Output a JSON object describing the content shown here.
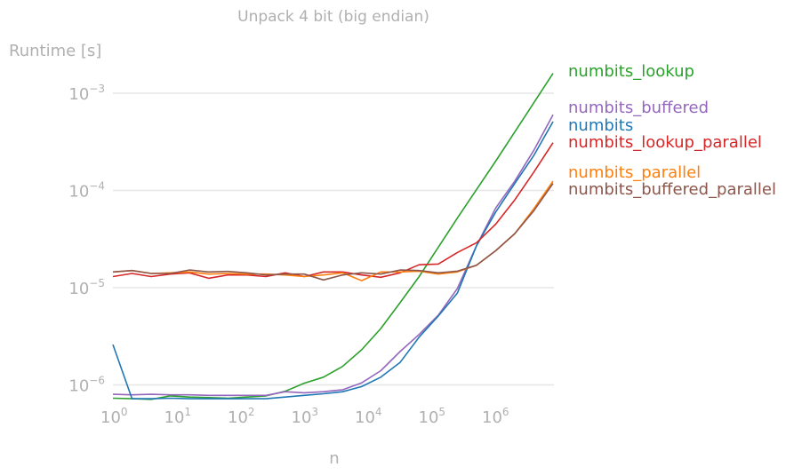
{
  "chart_data": {
    "type": "line",
    "title": "Unpack 4 bit (big endian)",
    "xlabel": "n",
    "ylabel": "Runtime [s]",
    "xscale": "log",
    "yscale": "log",
    "xlim": [
      1,
      8388608
    ],
    "ylim": [
      7e-07,
      0.0016
    ],
    "grid": "horizontal",
    "legend": "labels at line ends (right)",
    "x_ticks": [
      {
        "value": 1,
        "base": "10",
        "exp": "0"
      },
      {
        "value": 10,
        "base": "10",
        "exp": "1"
      },
      {
        "value": 100,
        "base": "10",
        "exp": "2"
      },
      {
        "value": 1000,
        "base": "10",
        "exp": "3"
      },
      {
        "value": 10000,
        "base": "10",
        "exp": "4"
      },
      {
        "value": 100000,
        "base": "10",
        "exp": "5"
      },
      {
        "value": 1000000,
        "base": "10",
        "exp": "6"
      }
    ],
    "y_ticks": [
      {
        "value": 1e-06,
        "base": "10",
        "exp": "−6"
      },
      {
        "value": 1e-05,
        "base": "10",
        "exp": "−5"
      },
      {
        "value": 0.0001,
        "base": "10",
        "exp": "−4"
      },
      {
        "value": 0.001,
        "base": "10",
        "exp": "−3"
      }
    ],
    "x": [
      1,
      2,
      4,
      8,
      16,
      32,
      64,
      128,
      256,
      512,
      1024,
      2048,
      4096,
      8192,
      16384,
      32768,
      65536,
      131072,
      262144,
      524288,
      1048576,
      2097152,
      4194304,
      8388608
    ],
    "series": [
      {
        "name": "numbits_lookup",
        "color": "#2ca02c",
        "values": [
          7.3e-07,
          7.2e-07,
          7.1e-07,
          7.7e-07,
          7.5e-07,
          7.4e-07,
          7.3e-07,
          7.5e-07,
          7.7e-07,
          8.6e-07,
          1.04e-06,
          1.2e-06,
          1.55e-06,
          2.3e-06,
          3.8e-06,
          7e-06,
          1.3e-05,
          2.6e-05,
          5.2e-05,
          0.000102,
          0.0002,
          0.0004,
          0.0008,
          0.0016
        ]
      },
      {
        "name": "numbits_buffered",
        "color": "#9467bd",
        "values": [
          8e-07,
          7.9e-07,
          8e-07,
          7.9e-07,
          7.9e-07,
          7.8e-07,
          7.8e-07,
          7.8e-07,
          7.8e-07,
          8.5e-07,
          8.3e-07,
          8.5e-07,
          8.9e-07,
          1.05e-06,
          1.4e-06,
          2.2e-06,
          3.3e-06,
          5.2e-06,
          9.8e-06,
          2.7e-05,
          6.6e-05,
          0.000125,
          0.00026,
          0.0006
        ]
      },
      {
        "name": "numbits",
        "color": "#1f77b4",
        "values": [
          2.6e-06,
          7.2e-07,
          7.2e-07,
          7.3e-07,
          7.2e-07,
          7.2e-07,
          7.2e-07,
          7.2e-07,
          7.2e-07,
          7.5e-07,
          7.8e-07,
          8.1e-07,
          8.5e-07,
          9.6e-07,
          1.2e-06,
          1.7e-06,
          3.1e-06,
          5.1e-06,
          8.8e-06,
          2.7e-05,
          6e-05,
          0.000118,
          0.00023,
          0.00051
        ]
      },
      {
        "name": "numbits_lookup_parallel",
        "color": "#d62728",
        "values": [
          1.3e-05,
          1.4e-05,
          1.3e-05,
          1.38e-05,
          1.42e-05,
          1.25e-05,
          1.35e-05,
          1.35e-05,
          1.3e-05,
          1.42e-05,
          1.3e-05,
          1.45e-05,
          1.45e-05,
          1.35e-05,
          1.28e-05,
          1.42e-05,
          1.72e-05,
          1.75e-05,
          2.3e-05,
          2.9e-05,
          4.5e-05,
          8e-05,
          0.000155,
          0.00031
        ]
      },
      {
        "name": "numbits_parallel",
        "color": "#ff7f0e",
        "values": [
          1.45e-05,
          1.5e-05,
          1.4e-05,
          1.42e-05,
          1.45e-05,
          1.38e-05,
          1.4e-05,
          1.38e-05,
          1.38e-05,
          1.35e-05,
          1.3e-05,
          1.35e-05,
          1.42e-05,
          1.18e-05,
          1.45e-05,
          1.45e-05,
          1.48e-05,
          1.38e-05,
          1.45e-05,
          1.7e-05,
          2.4e-05,
          3.6e-05,
          6.5e-05,
          0.000125
        ]
      },
      {
        "name": "numbits_buffered_parallel",
        "color": "#8c564b",
        "values": [
          1.45e-05,
          1.5e-05,
          1.4e-05,
          1.4e-05,
          1.52e-05,
          1.45e-05,
          1.47e-05,
          1.42e-05,
          1.35e-05,
          1.38e-05,
          1.38e-05,
          1.2e-05,
          1.35e-05,
          1.42e-05,
          1.38e-05,
          1.52e-05,
          1.5e-05,
          1.42e-05,
          1.48e-05,
          1.7e-05,
          2.4e-05,
          3.6e-05,
          6.2e-05,
          0.000118
        ]
      }
    ]
  }
}
